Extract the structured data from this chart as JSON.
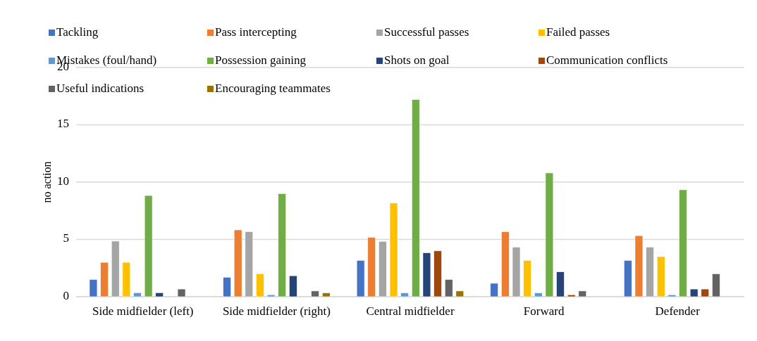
{
  "chart_data": {
    "type": "bar",
    "ylabel": "no action",
    "categories": [
      "Side midfielder (left)",
      "Side midfielder (right)",
      "Central midfielder",
      "Forward",
      "Defender"
    ],
    "ylim": [
      0,
      20
    ],
    "yticks": [
      0,
      5,
      10,
      15,
      20
    ],
    "grid": "y",
    "legend": "top",
    "series": [
      {
        "name": "Tackling",
        "color": "#4472c4",
        "values": [
          1.5,
          1.7,
          3.17,
          1.17,
          3.17
        ]
      },
      {
        "name": "Pass intercepting",
        "color": "#ed7d31",
        "values": [
          3.0,
          5.83,
          5.17,
          5.67,
          5.33
        ]
      },
      {
        "name": "Successful passes",
        "color": "#a5a5a5",
        "values": [
          4.85,
          5.67,
          4.83,
          4.33,
          4.33
        ]
      },
      {
        "name": "Failed passes",
        "color": "#ffc000",
        "values": [
          3.0,
          2.0,
          8.17,
          3.17,
          3.5
        ]
      },
      {
        "name": "Mistakes (foul/hand)",
        "color": "#5b9bd5",
        "values": [
          0.35,
          0.17,
          0.33,
          0.33,
          0.17
        ]
      },
      {
        "name": "Possession gaining",
        "color": "#70ad47",
        "values": [
          8.83,
          9.0,
          17.2,
          10.8,
          9.33
        ]
      },
      {
        "name": "Shots on goal",
        "color": "#264478",
        "values": [
          0.35,
          1.83,
          3.83,
          2.17,
          0.67
        ]
      },
      {
        "name": "Communication conflicts",
        "color": "#9e480e",
        "values": [
          0,
          0,
          4.0,
          0.17,
          0.67
        ]
      },
      {
        "name": "Useful indications",
        "color": "#636363",
        "values": [
          0.67,
          0.5,
          1.5,
          0.5,
          2.0
        ]
      },
      {
        "name": "Encouraging teammates",
        "color": "#997300",
        "values": [
          0,
          0.33,
          0.5,
          0,
          0
        ]
      }
    ]
  }
}
